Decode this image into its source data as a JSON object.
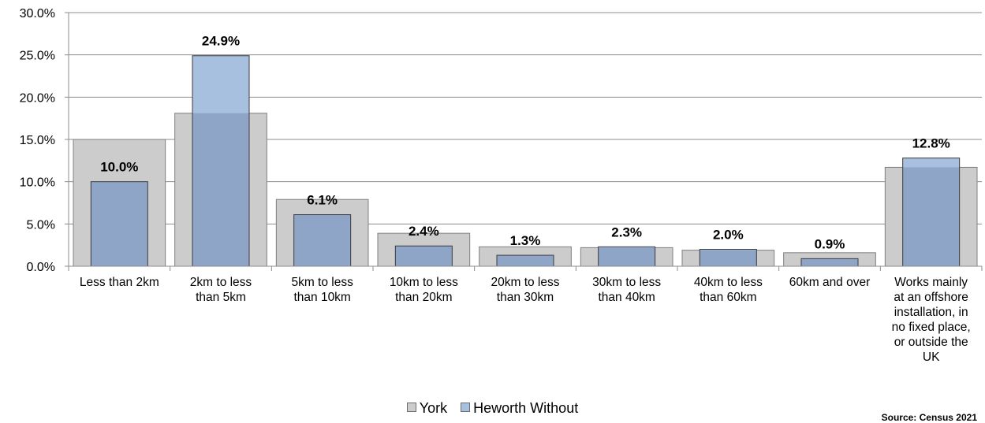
{
  "chart_data": {
    "type": "bar",
    "categories": [
      [
        "Less than 2km"
      ],
      [
        "2km to less",
        "than 5km"
      ],
      [
        "5km to less",
        "than 10km"
      ],
      [
        "10km to less",
        "than 20km"
      ],
      [
        "20km to less",
        "than 30km"
      ],
      [
        "30km to less",
        "than 40km"
      ],
      [
        "40km to less",
        "than 60km"
      ],
      [
        "60km and over"
      ],
      [
        "Works mainly",
        "at an offshore",
        "installation, in",
        "no fixed place,",
        "or outside the",
        "UK"
      ]
    ],
    "series": [
      {
        "name": "York",
        "values": [
          15.0,
          18.1,
          7.9,
          3.9,
          2.3,
          2.2,
          1.9,
          1.6,
          11.7
        ],
        "color": "#cccccc",
        "stroke": "#7f7f7f"
      },
      {
        "name": "Heworth Without",
        "values": [
          10.0,
          24.9,
          6.1,
          2.4,
          1.3,
          2.3,
          2.0,
          0.9,
          12.8
        ],
        "color_base": "#8ea5c8",
        "color_top": "#a8c0e0",
        "stroke": "#3a3a3a"
      }
    ],
    "data_labels": [
      "10.0%",
      "24.9%",
      "6.1%",
      "2.4%",
      "1.3%",
      "2.3%",
      "2.0%",
      "0.9%",
      "12.8%"
    ],
    "yticks": [
      "0.0%",
      "5.0%",
      "10.0%",
      "15.0%",
      "20.0%",
      "25.0%",
      "30.0%"
    ],
    "ylim": [
      0,
      30
    ],
    "grid": true,
    "legend_position": "bottom"
  },
  "legend": {
    "items": [
      "York",
      "Heworth Without"
    ]
  },
  "source": "Source: Census 2021"
}
